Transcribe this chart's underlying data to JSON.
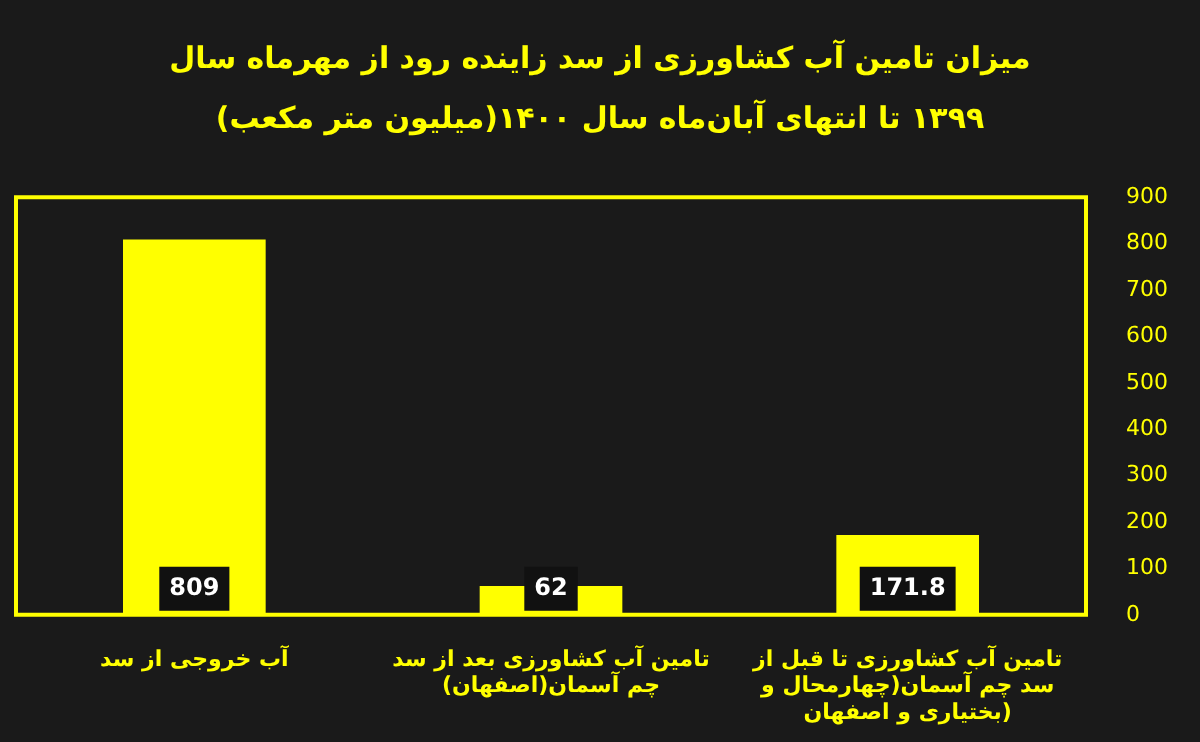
{
  "chart_data": {
    "type": "bar",
    "title": "میزان تامین آب کشاورزی از سد زاینده رود از مهرماه سال ۱۳۹۹ تا انتهای آبان‌ماه سال ۱۴۰۰(میلیون متر مکعب)",
    "categories": [
      "آب خروجی از سد",
      "تامین آب کشاورزی بعد از سد چم آسمان(اصفهان)",
      "تامین آب کشاورزی تا قبل از سد چم آسمان(چهارمحال و بختیاری و اصفهان)"
    ],
    "values": [
      809,
      62,
      171.8
    ],
    "color": "#ffff00",
    "ylim": [
      0,
      900
    ],
    "yticks": [
      0,
      100,
      200,
      300,
      400,
      500,
      600,
      700,
      800,
      900
    ],
    "grid": false,
    "data_labels": true
  }
}
